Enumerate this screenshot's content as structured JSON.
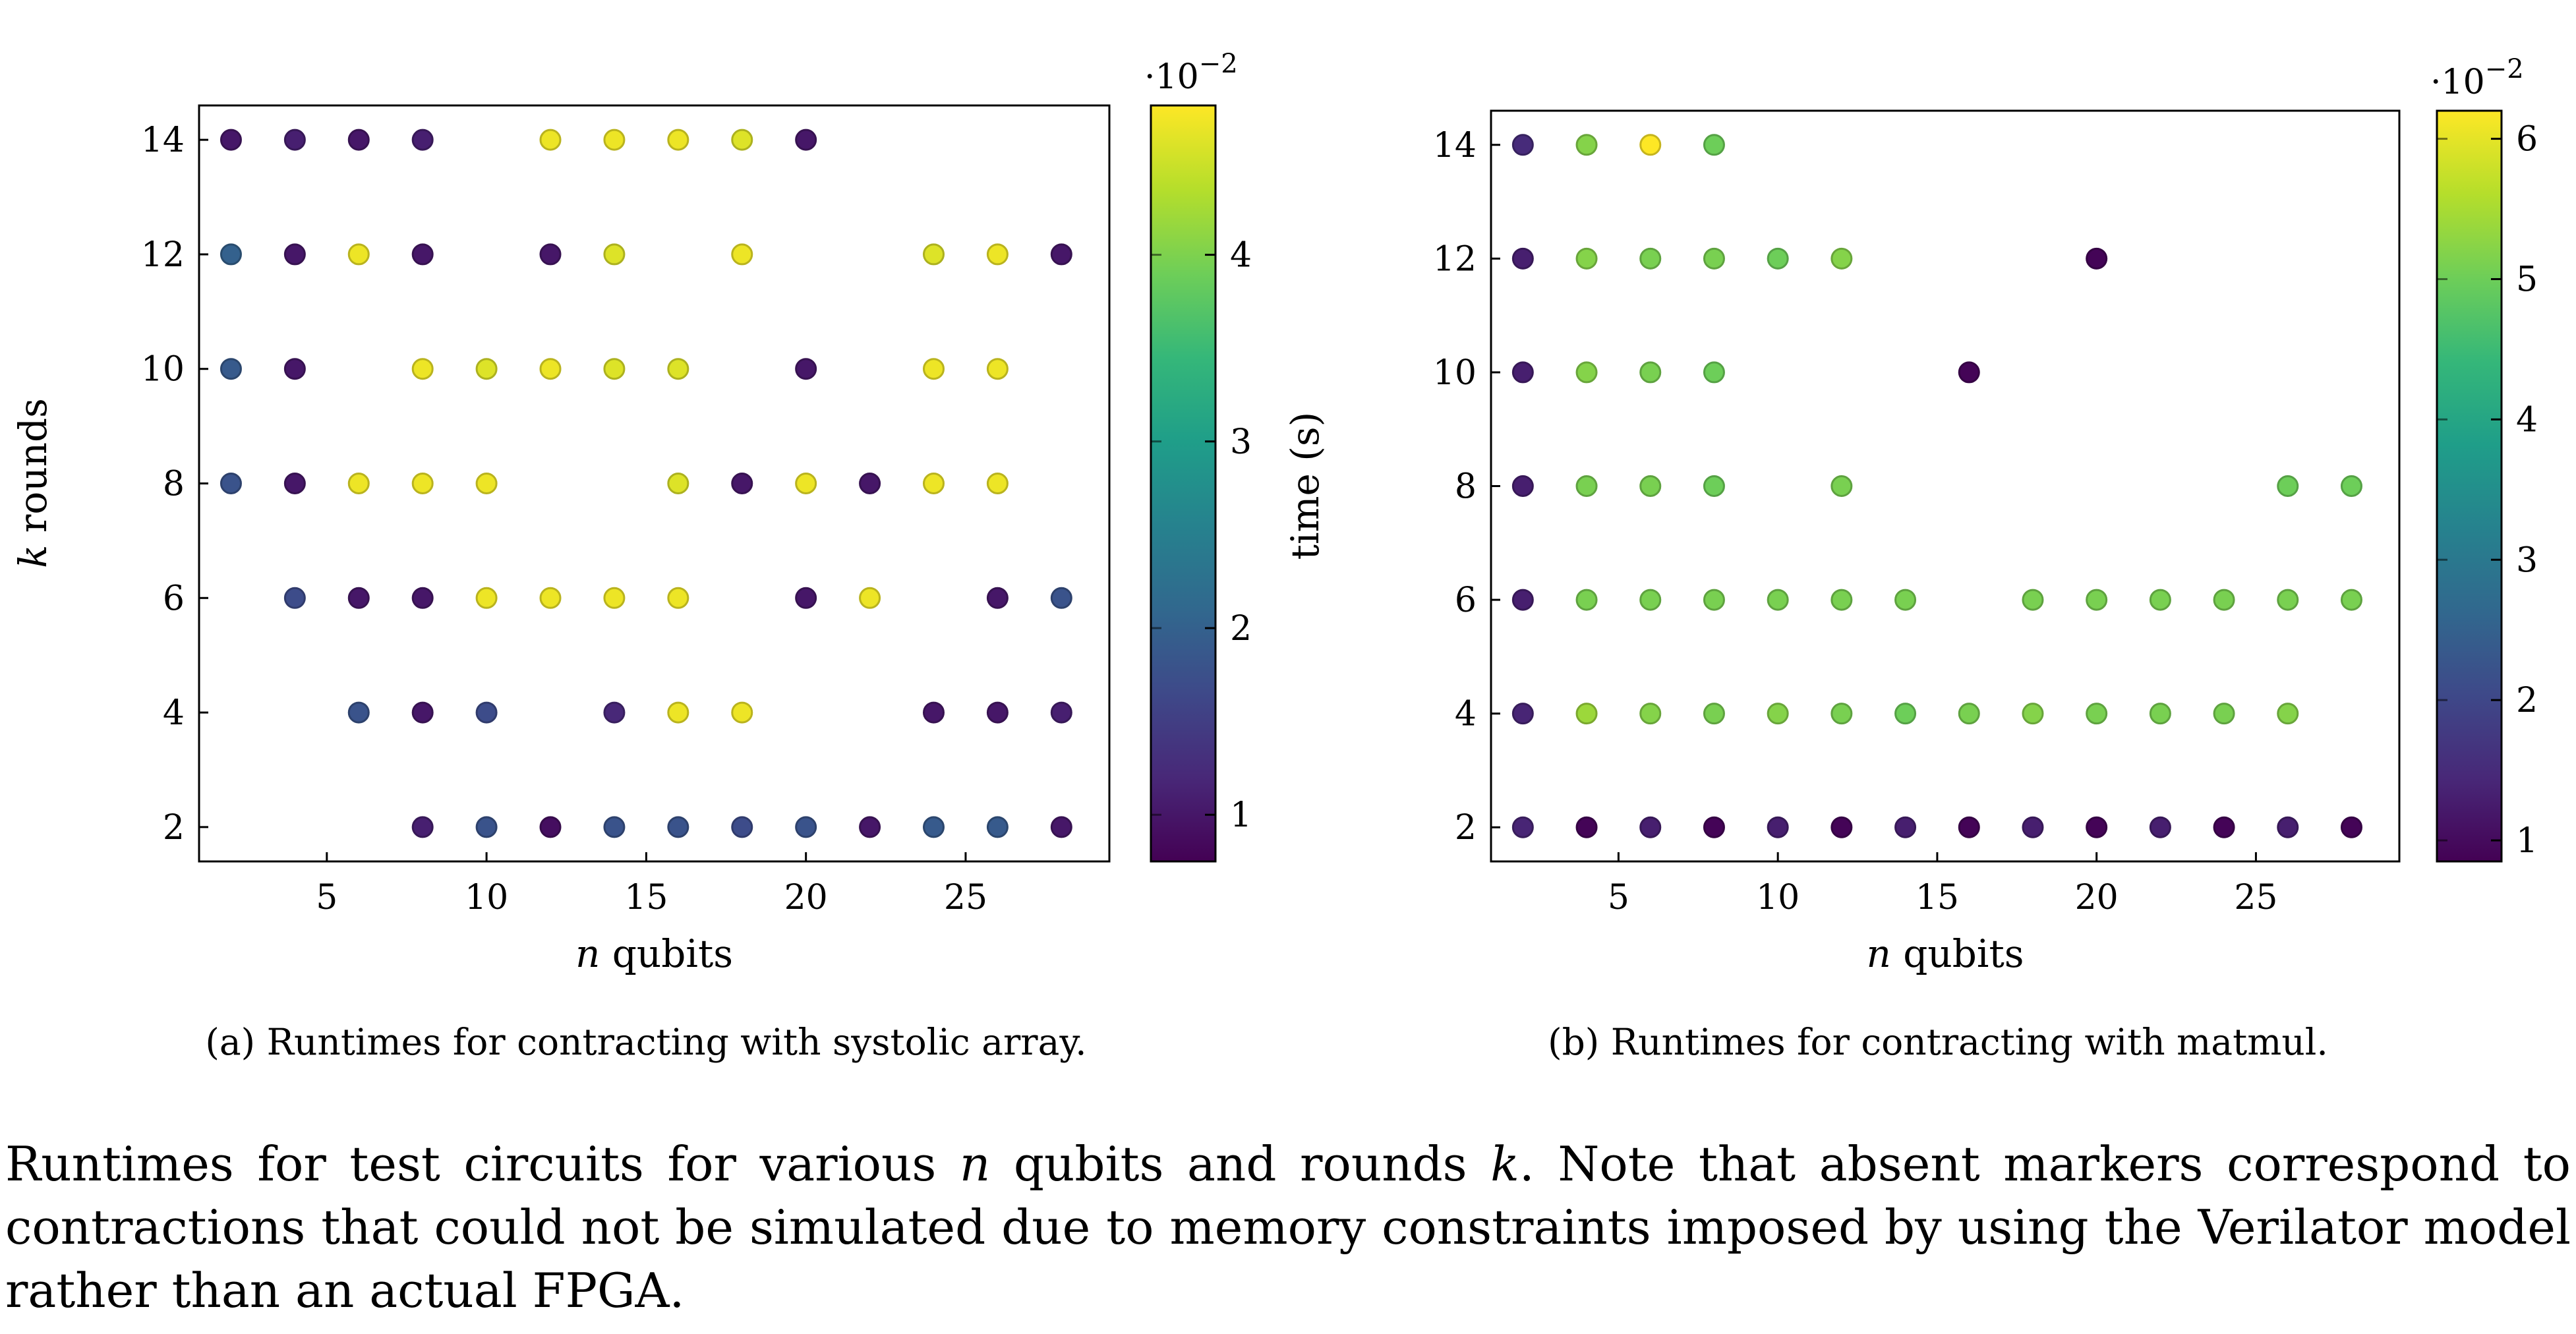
{
  "colors": {
    "viridis": [
      "#440154",
      "#482878",
      "#3e4989",
      "#31688e",
      "#26828e",
      "#1f9e89",
      "#35b779",
      "#6ece58",
      "#b5de2b",
      "#fde725"
    ],
    "marker_edge_darken": 0.78
  },
  "chart_data": [
    {
      "type": "scatter",
      "id": "systolic",
      "xlabel_var": "n",
      "xlabel_rest": " qubits",
      "ylabel_var": "k",
      "ylabel_rest": " rounds",
      "xlim": [
        1,
        29.5
      ],
      "ylim": [
        1.4,
        14.6
      ],
      "xticks": [
        5,
        10,
        15,
        20,
        25
      ],
      "yticks": [
        2,
        4,
        6,
        8,
        10,
        12,
        14
      ],
      "colorbar": {
        "vmin": 0.0075,
        "vmax": 0.048,
        "ticks": [
          1,
          2,
          3,
          4
        ],
        "tick_scale": 0.01,
        "exponent_base": "10",
        "exponent": "−2"
      },
      "caption_tag": "(a)",
      "caption": "Runtimes for contracting with systolic array.",
      "points": [
        [
          2,
          14,
          0.01
        ],
        [
          4,
          14,
          0.011
        ],
        [
          6,
          14,
          0.01
        ],
        [
          8,
          14,
          0.011
        ],
        [
          12,
          14,
          0.047
        ],
        [
          14,
          14,
          0.047
        ],
        [
          16,
          14,
          0.047
        ],
        [
          18,
          14,
          0.046
        ],
        [
          20,
          14,
          0.01
        ],
        [
          2,
          12,
          0.02
        ],
        [
          4,
          12,
          0.01
        ],
        [
          6,
          12,
          0.047
        ],
        [
          8,
          12,
          0.01
        ],
        [
          12,
          12,
          0.01
        ],
        [
          14,
          12,
          0.046
        ],
        [
          18,
          12,
          0.047
        ],
        [
          24,
          12,
          0.046
        ],
        [
          26,
          12,
          0.047
        ],
        [
          28,
          12,
          0.01
        ],
        [
          2,
          10,
          0.019
        ],
        [
          4,
          10,
          0.01
        ],
        [
          8,
          10,
          0.047
        ],
        [
          10,
          10,
          0.046
        ],
        [
          12,
          10,
          0.047
        ],
        [
          14,
          10,
          0.046
        ],
        [
          16,
          10,
          0.046
        ],
        [
          20,
          10,
          0.01
        ],
        [
          24,
          10,
          0.047
        ],
        [
          26,
          10,
          0.047
        ],
        [
          2,
          8,
          0.018
        ],
        [
          4,
          8,
          0.01
        ],
        [
          6,
          8,
          0.047
        ],
        [
          8,
          8,
          0.047
        ],
        [
          10,
          8,
          0.047
        ],
        [
          16,
          8,
          0.046
        ],
        [
          18,
          8,
          0.01
        ],
        [
          20,
          8,
          0.047
        ],
        [
          22,
          8,
          0.01
        ],
        [
          24,
          8,
          0.047
        ],
        [
          26,
          8,
          0.047
        ],
        [
          4,
          6,
          0.017
        ],
        [
          6,
          6,
          0.01
        ],
        [
          8,
          6,
          0.01
        ],
        [
          10,
          6,
          0.047
        ],
        [
          12,
          6,
          0.047
        ],
        [
          14,
          6,
          0.047
        ],
        [
          16,
          6,
          0.047
        ],
        [
          20,
          6,
          0.01
        ],
        [
          22,
          6,
          0.047
        ],
        [
          26,
          6,
          0.01
        ],
        [
          28,
          6,
          0.018
        ],
        [
          6,
          4,
          0.018
        ],
        [
          8,
          4,
          0.01
        ],
        [
          10,
          4,
          0.017
        ],
        [
          14,
          4,
          0.012
        ],
        [
          16,
          4,
          0.047
        ],
        [
          18,
          4,
          0.047
        ],
        [
          24,
          4,
          0.01
        ],
        [
          26,
          4,
          0.01
        ],
        [
          28,
          4,
          0.011
        ],
        [
          8,
          2,
          0.011
        ],
        [
          10,
          2,
          0.018
        ],
        [
          12,
          2,
          0.009
        ],
        [
          14,
          2,
          0.018
        ],
        [
          16,
          2,
          0.018
        ],
        [
          18,
          2,
          0.017
        ],
        [
          20,
          2,
          0.018
        ],
        [
          22,
          2,
          0.01
        ],
        [
          24,
          2,
          0.019
        ],
        [
          26,
          2,
          0.019
        ],
        [
          28,
          2,
          0.01
        ]
      ]
    },
    {
      "type": "scatter",
      "id": "matmul",
      "xlabel_var": "n",
      "xlabel_rest": " qubits",
      "ylabel_var": "",
      "ylabel_rest": "time (s)",
      "xlim": [
        1,
        29.5
      ],
      "ylim": [
        1.4,
        14.6
      ],
      "xticks": [
        5,
        10,
        15,
        20,
        25
      ],
      "yticks": [
        2,
        4,
        6,
        8,
        10,
        12,
        14
      ],
      "colorbar": {
        "vmin": 0.0085,
        "vmax": 0.062,
        "ticks": [
          1,
          2,
          3,
          4,
          5,
          6
        ],
        "tick_scale": 0.01,
        "exponent_base": "10",
        "exponent": "−2"
      },
      "caption_tag": "(b)",
      "caption": "Runtimes for contracting with matmul.",
      "points": [
        [
          2,
          14,
          0.015
        ],
        [
          4,
          14,
          0.052
        ],
        [
          6,
          14,
          0.062
        ],
        [
          8,
          14,
          0.05
        ],
        [
          2,
          12,
          0.013
        ],
        [
          4,
          12,
          0.052
        ],
        [
          6,
          12,
          0.051
        ],
        [
          8,
          12,
          0.051
        ],
        [
          10,
          12,
          0.05
        ],
        [
          12,
          12,
          0.052
        ],
        [
          20,
          12,
          0.009
        ],
        [
          2,
          10,
          0.013
        ],
        [
          4,
          10,
          0.052
        ],
        [
          6,
          10,
          0.051
        ],
        [
          8,
          10,
          0.05
        ],
        [
          16,
          10,
          0.009
        ],
        [
          2,
          8,
          0.013
        ],
        [
          4,
          8,
          0.051
        ],
        [
          6,
          8,
          0.051
        ],
        [
          8,
          8,
          0.05
        ],
        [
          12,
          8,
          0.051
        ],
        [
          26,
          8,
          0.05
        ],
        [
          28,
          8,
          0.05
        ],
        [
          2,
          6,
          0.013
        ],
        [
          4,
          6,
          0.051
        ],
        [
          6,
          6,
          0.051
        ],
        [
          8,
          6,
          0.051
        ],
        [
          10,
          6,
          0.051
        ],
        [
          12,
          6,
          0.051
        ],
        [
          14,
          6,
          0.051
        ],
        [
          18,
          6,
          0.051
        ],
        [
          20,
          6,
          0.051
        ],
        [
          22,
          6,
          0.051
        ],
        [
          24,
          6,
          0.051
        ],
        [
          26,
          6,
          0.051
        ],
        [
          28,
          6,
          0.051
        ],
        [
          2,
          4,
          0.014
        ],
        [
          4,
          4,
          0.054
        ],
        [
          6,
          4,
          0.052
        ],
        [
          8,
          4,
          0.051
        ],
        [
          10,
          4,
          0.052
        ],
        [
          12,
          4,
          0.051
        ],
        [
          14,
          4,
          0.05
        ],
        [
          16,
          4,
          0.051
        ],
        [
          18,
          4,
          0.052
        ],
        [
          20,
          4,
          0.051
        ],
        [
          22,
          4,
          0.051
        ],
        [
          24,
          4,
          0.051
        ],
        [
          26,
          4,
          0.052
        ],
        [
          2,
          2,
          0.014
        ],
        [
          4,
          2,
          0.009
        ],
        [
          6,
          2,
          0.013
        ],
        [
          8,
          2,
          0.009
        ],
        [
          10,
          2,
          0.013
        ],
        [
          12,
          2,
          0.009
        ],
        [
          14,
          2,
          0.013
        ],
        [
          16,
          2,
          0.009
        ],
        [
          18,
          2,
          0.013
        ],
        [
          20,
          2,
          0.009
        ],
        [
          22,
          2,
          0.013
        ],
        [
          24,
          2,
          0.009
        ],
        [
          26,
          2,
          0.013
        ],
        [
          28,
          2,
          0.009
        ]
      ]
    }
  ],
  "caption": {
    "p1": "Runtimes for test circuits for various ",
    "v1": "n",
    "p2": " qubits and rounds ",
    "v2": "k",
    "p3": ". Note that absent markers correspond to contractions that could not be simulated due to memory constraints imposed by using the Verilator model rather than an actual FPGA."
  }
}
